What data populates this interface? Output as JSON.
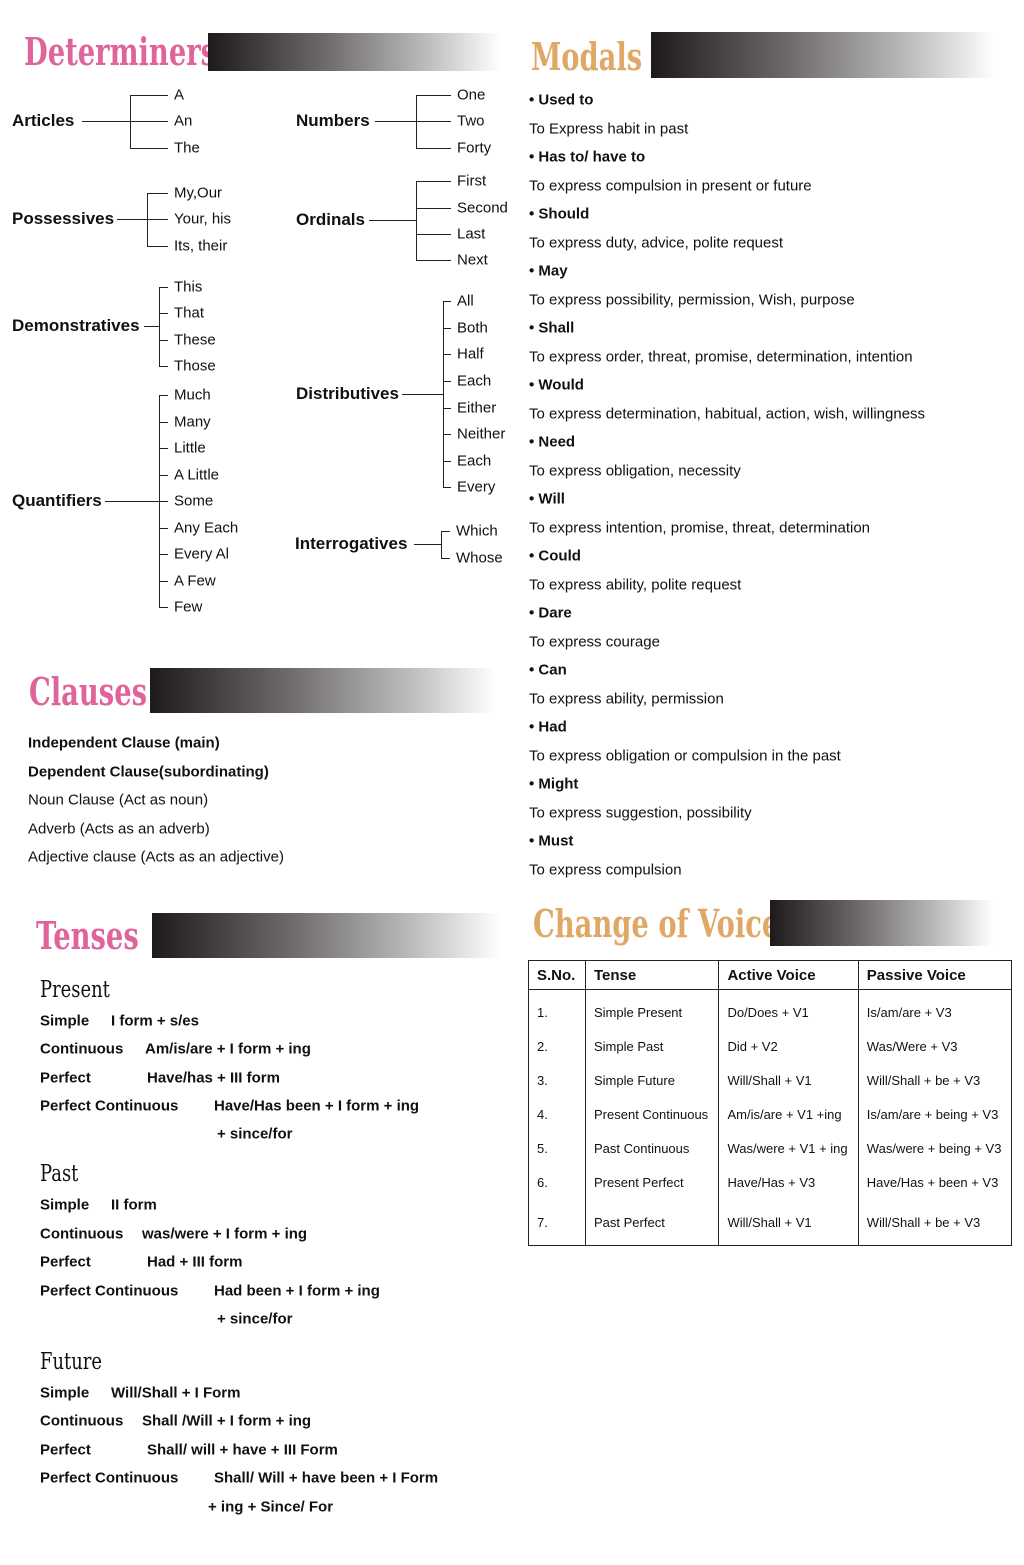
{
  "colors": {
    "determiners": "#e0649c",
    "modals": "#dfa866",
    "clauses": "#e0649c",
    "tenses": "#e0649c",
    "voice": "#dfa866"
  },
  "determiners": {
    "title": "Determiners",
    "groups": [
      {
        "label": "Articles",
        "items": [
          "A",
          "An",
          "The"
        ]
      },
      {
        "label": "Numbers",
        "items": [
          "One",
          "Two",
          "Forty"
        ]
      },
      {
        "label": "Possessives",
        "items": [
          "My,Our",
          "Your, his",
          "Its, their"
        ]
      },
      {
        "label": "Ordinals",
        "items": [
          "First",
          "Second",
          "Last",
          "Next"
        ]
      },
      {
        "label": "Demonstratives",
        "items": [
          "This",
          "That",
          "These",
          "Those"
        ]
      },
      {
        "label": "Distributives",
        "items": [
          "All",
          "Both",
          "Half",
          "Each",
          "Either",
          "Neither",
          "Each",
          "Every"
        ]
      },
      {
        "label": "Quantifiers",
        "items": [
          "Much",
          "Many",
          "Little",
          "A Little",
          "Some",
          "Any Each",
          "Every Al",
          "A Few",
          "Few"
        ]
      },
      {
        "label": "Interrogatives",
        "items": [
          "Which",
          "Whose"
        ]
      }
    ]
  },
  "modals": {
    "title": "Modals",
    "items": [
      {
        "name": "• Used to",
        "desc": "To Express habit in past"
      },
      {
        "name": "• Has to/ have to",
        "desc": "To express compulsion in present or future"
      },
      {
        "name": "• Should",
        "desc": "To express duty, advice, polite request"
      },
      {
        "name": "• May",
        "desc": "To express possibility, permission, Wish, purpose"
      },
      {
        "name": "• Shall",
        "desc": "To express order, threat, promise, determination, intention"
      },
      {
        "name": "• Would",
        "desc": "To express determination, habitual, action, wish, willingness"
      },
      {
        "name": "• Need",
        "desc": "To express obligation, necessity"
      },
      {
        "name": "• Will",
        "desc": "To express intention, promise, threat, determination"
      },
      {
        "name": "• Could",
        "desc": "To express ability, polite request"
      },
      {
        "name": "• Dare",
        "desc": "To express courage"
      },
      {
        "name": "• Can",
        "desc": "To express ability, permission"
      },
      {
        "name": "• Had",
        "desc": "To express obligation or compulsion in the past"
      },
      {
        "name": "• Might",
        "desc": "To express suggestion, possibility"
      },
      {
        "name": "• Must",
        "desc": "To express compulsion"
      }
    ]
  },
  "clauses": {
    "title": "Clauses",
    "items": [
      {
        "text": "Independent Clause (main)",
        "bold": true
      },
      {
        "text": "Dependent Clause(subordinating)",
        "bold": true
      },
      {
        "text": "Noun Clause (Act as noun)",
        "bold": false
      },
      {
        "text": "Adverb (Acts as an adverb)",
        "bold": false
      },
      {
        "text": "Adjective clause (Acts as an adjective)",
        "bold": false
      }
    ]
  },
  "tenses": {
    "title": "Tenses",
    "sections": [
      {
        "heading": "Present",
        "rows": [
          {
            "label": "Simple",
            "value": "I form + s/es"
          },
          {
            "label": "Continuous",
            "value": "Am/is/are + I form + ing"
          },
          {
            "label": "Perfect",
            "value": "Have/has + III form"
          },
          {
            "label": "Perfect Continuous",
            "value": "Have/Has been + I form + ing"
          },
          {
            "label": "",
            "value": "+ since/for"
          }
        ]
      },
      {
        "heading": "Past",
        "rows": [
          {
            "label": "Simple",
            "value": "II form"
          },
          {
            "label": "Continuous",
            "value": "was/were + I form + ing"
          },
          {
            "label": "Perfect",
            "value": "Had + III form"
          },
          {
            "label": "Perfect Continuous",
            "value": "Had been + I form + ing"
          },
          {
            "label": "",
            "value": "+ since/for"
          }
        ]
      },
      {
        "heading": "Future",
        "rows": [
          {
            "label": "Simple",
            "value": "Will/Shall + I Form"
          },
          {
            "label": "Continuous",
            "value": "Shall /Will + I form + ing"
          },
          {
            "label": "Perfect",
            "value": "Shall/ will + have + III Form"
          },
          {
            "label": "Perfect Continuous",
            "value": "Shall/ Will + have been + I Form"
          },
          {
            "label": "",
            "value": "+ ing + Since/ For"
          }
        ]
      }
    ]
  },
  "voice": {
    "title": "Change of Voice",
    "headers": [
      "S.No.",
      "Tense",
      "Active Voice",
      "Passive Voice"
    ],
    "rows": [
      [
        "1.",
        "Simple Present",
        "Do/Does + V1",
        "Is/am/are + V3"
      ],
      [
        "2.",
        "Simple Past",
        "Did + V2",
        "Was/Were + V3"
      ],
      [
        "3.",
        "Simple Future",
        "Will/Shall + V1",
        "Will/Shall + be + V3"
      ],
      [
        "4.",
        "Present Continuous",
        "Am/is/are + V1 +ing",
        "Is/am/are + being + V3"
      ],
      [
        "5.",
        "Past Continuous",
        "Was/were + V1 + ing",
        "Was/were + being + V3"
      ],
      [
        "6.",
        "Present Perfect",
        "Have/Has + V3",
        "Have/Has + been + V3"
      ],
      [
        "7.",
        "Past Perfect",
        "Will/Shall + V1",
        "Will/Shall + be + V3"
      ]
    ]
  }
}
